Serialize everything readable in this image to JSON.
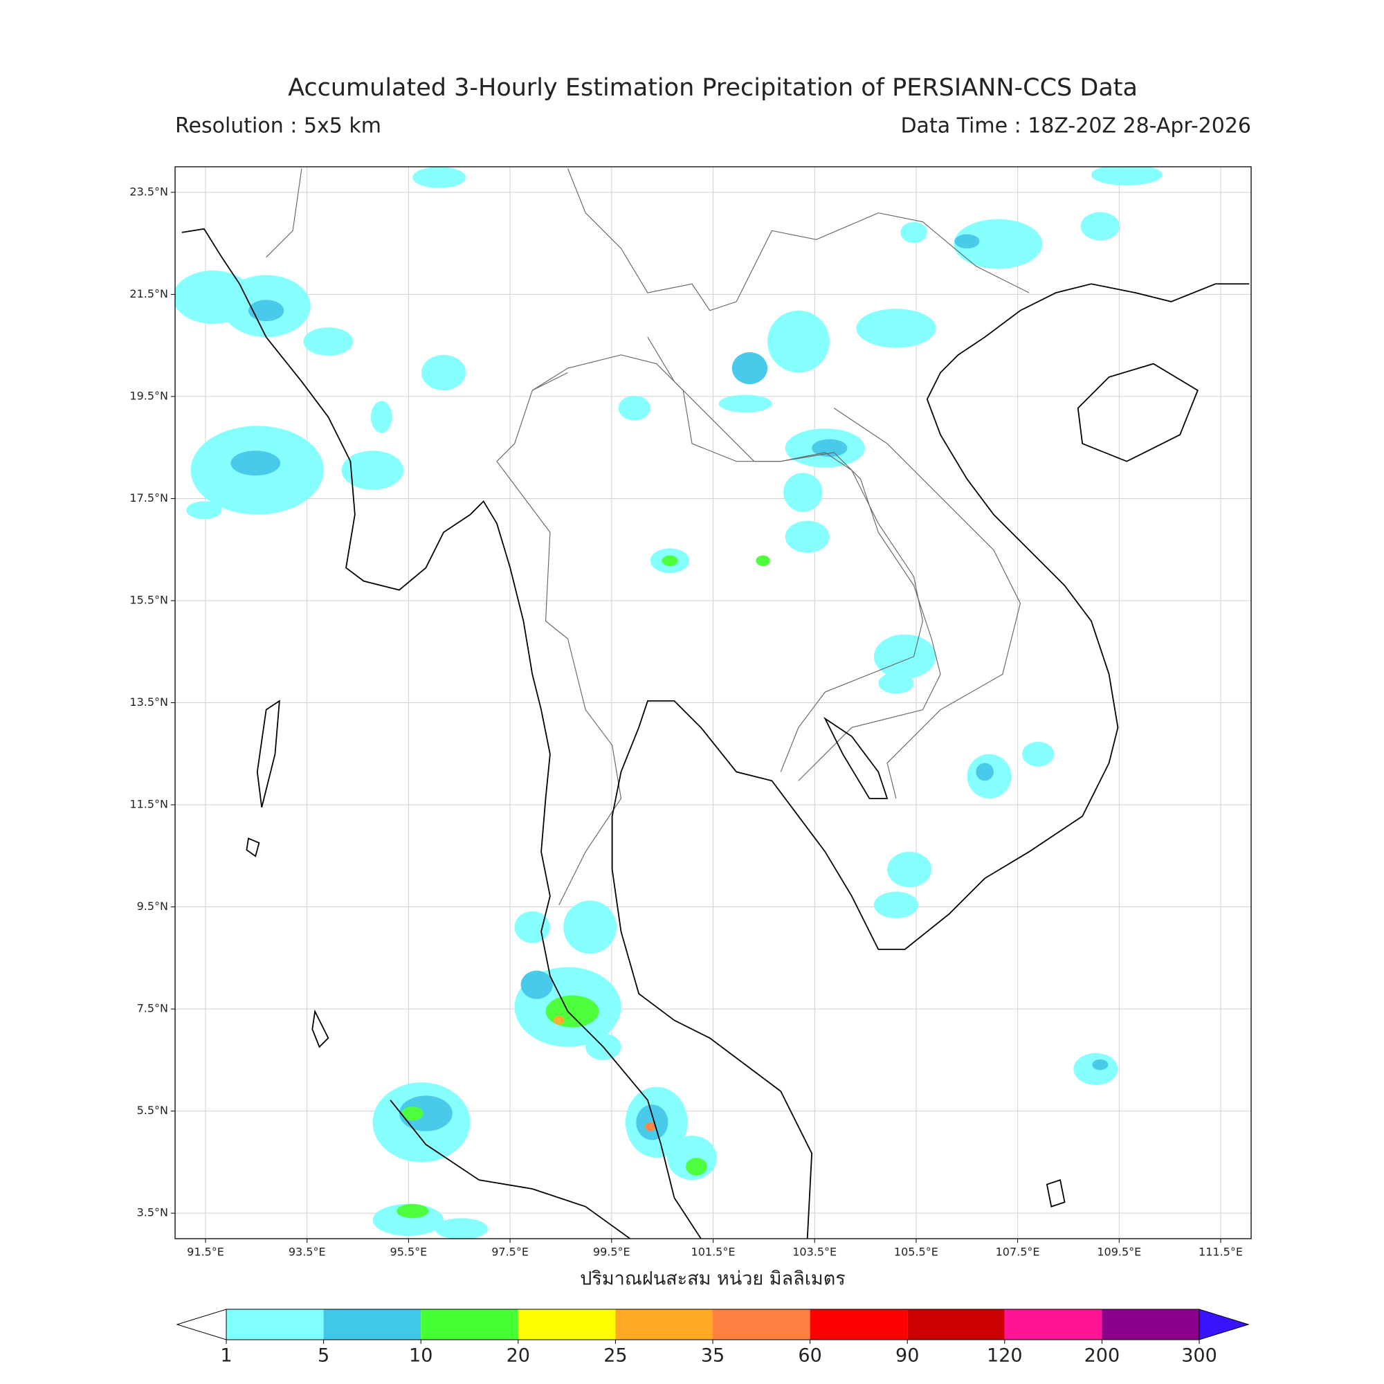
{
  "header": {
    "title": "Accumulated 3-Hourly Estimation Precipitation of PERSIANN-CCS Data",
    "resolution": "Resolution : 5x5 km",
    "data_time": "Data Time : 18Z-20Z 28-Apr-2026"
  },
  "map": {
    "xlabel": "ปริมาณฝนสะสม หน่วย มิลลิเมตร",
    "xlim": [
      90.9,
      112.1
    ],
    "ylim": [
      3.0,
      24.0
    ],
    "xticks": [
      {
        "value": 91.5,
        "label": "91.5°E"
      },
      {
        "value": 93.5,
        "label": "93.5°E"
      },
      {
        "value": 95.5,
        "label": "95.5°E"
      },
      {
        "value": 97.5,
        "label": "97.5°E"
      },
      {
        "value": 99.5,
        "label": "99.5°E"
      },
      {
        "value": 101.5,
        "label": "101.5°E"
      },
      {
        "value": 103.5,
        "label": "103.5°E"
      },
      {
        "value": 105.5,
        "label": "105.5°E"
      },
      {
        "value": 107.5,
        "label": "107.5°E"
      },
      {
        "value": 109.5,
        "label": "109.5°E"
      },
      {
        "value": 111.5,
        "label": "111.5°E"
      }
    ],
    "yticks": [
      {
        "value": 3.5,
        "label": "3.5°N"
      },
      {
        "value": 5.5,
        "label": "5.5°N"
      },
      {
        "value": 7.5,
        "label": "7.5°N"
      },
      {
        "value": 9.5,
        "label": "9.5°N"
      },
      {
        "value": 11.5,
        "label": "11.5°N"
      },
      {
        "value": 13.5,
        "label": "13.5°N"
      },
      {
        "value": 15.5,
        "label": "15.5°N"
      },
      {
        "value": 17.5,
        "label": "17.5°N"
      },
      {
        "value": 19.5,
        "label": "19.5°N"
      },
      {
        "value": 21.5,
        "label": "21.5°N"
      },
      {
        "value": 23.5,
        "label": "23.5°N"
      }
    ],
    "grid": true
  },
  "colorbar": {
    "levels": [
      1,
      5,
      10,
      20,
      25,
      35,
      60,
      90,
      120,
      200,
      300
    ],
    "colors": [
      "#80ffff",
      "#40c8ea",
      "#45ff33",
      "#ffff00",
      "#ffaa22",
      "#ff8040",
      "#ff0000",
      "#cc0000",
      "#ff1493",
      "#8b008b"
    ],
    "under_color": "#ffffff",
    "over_color": "#3a14ff"
  }
}
